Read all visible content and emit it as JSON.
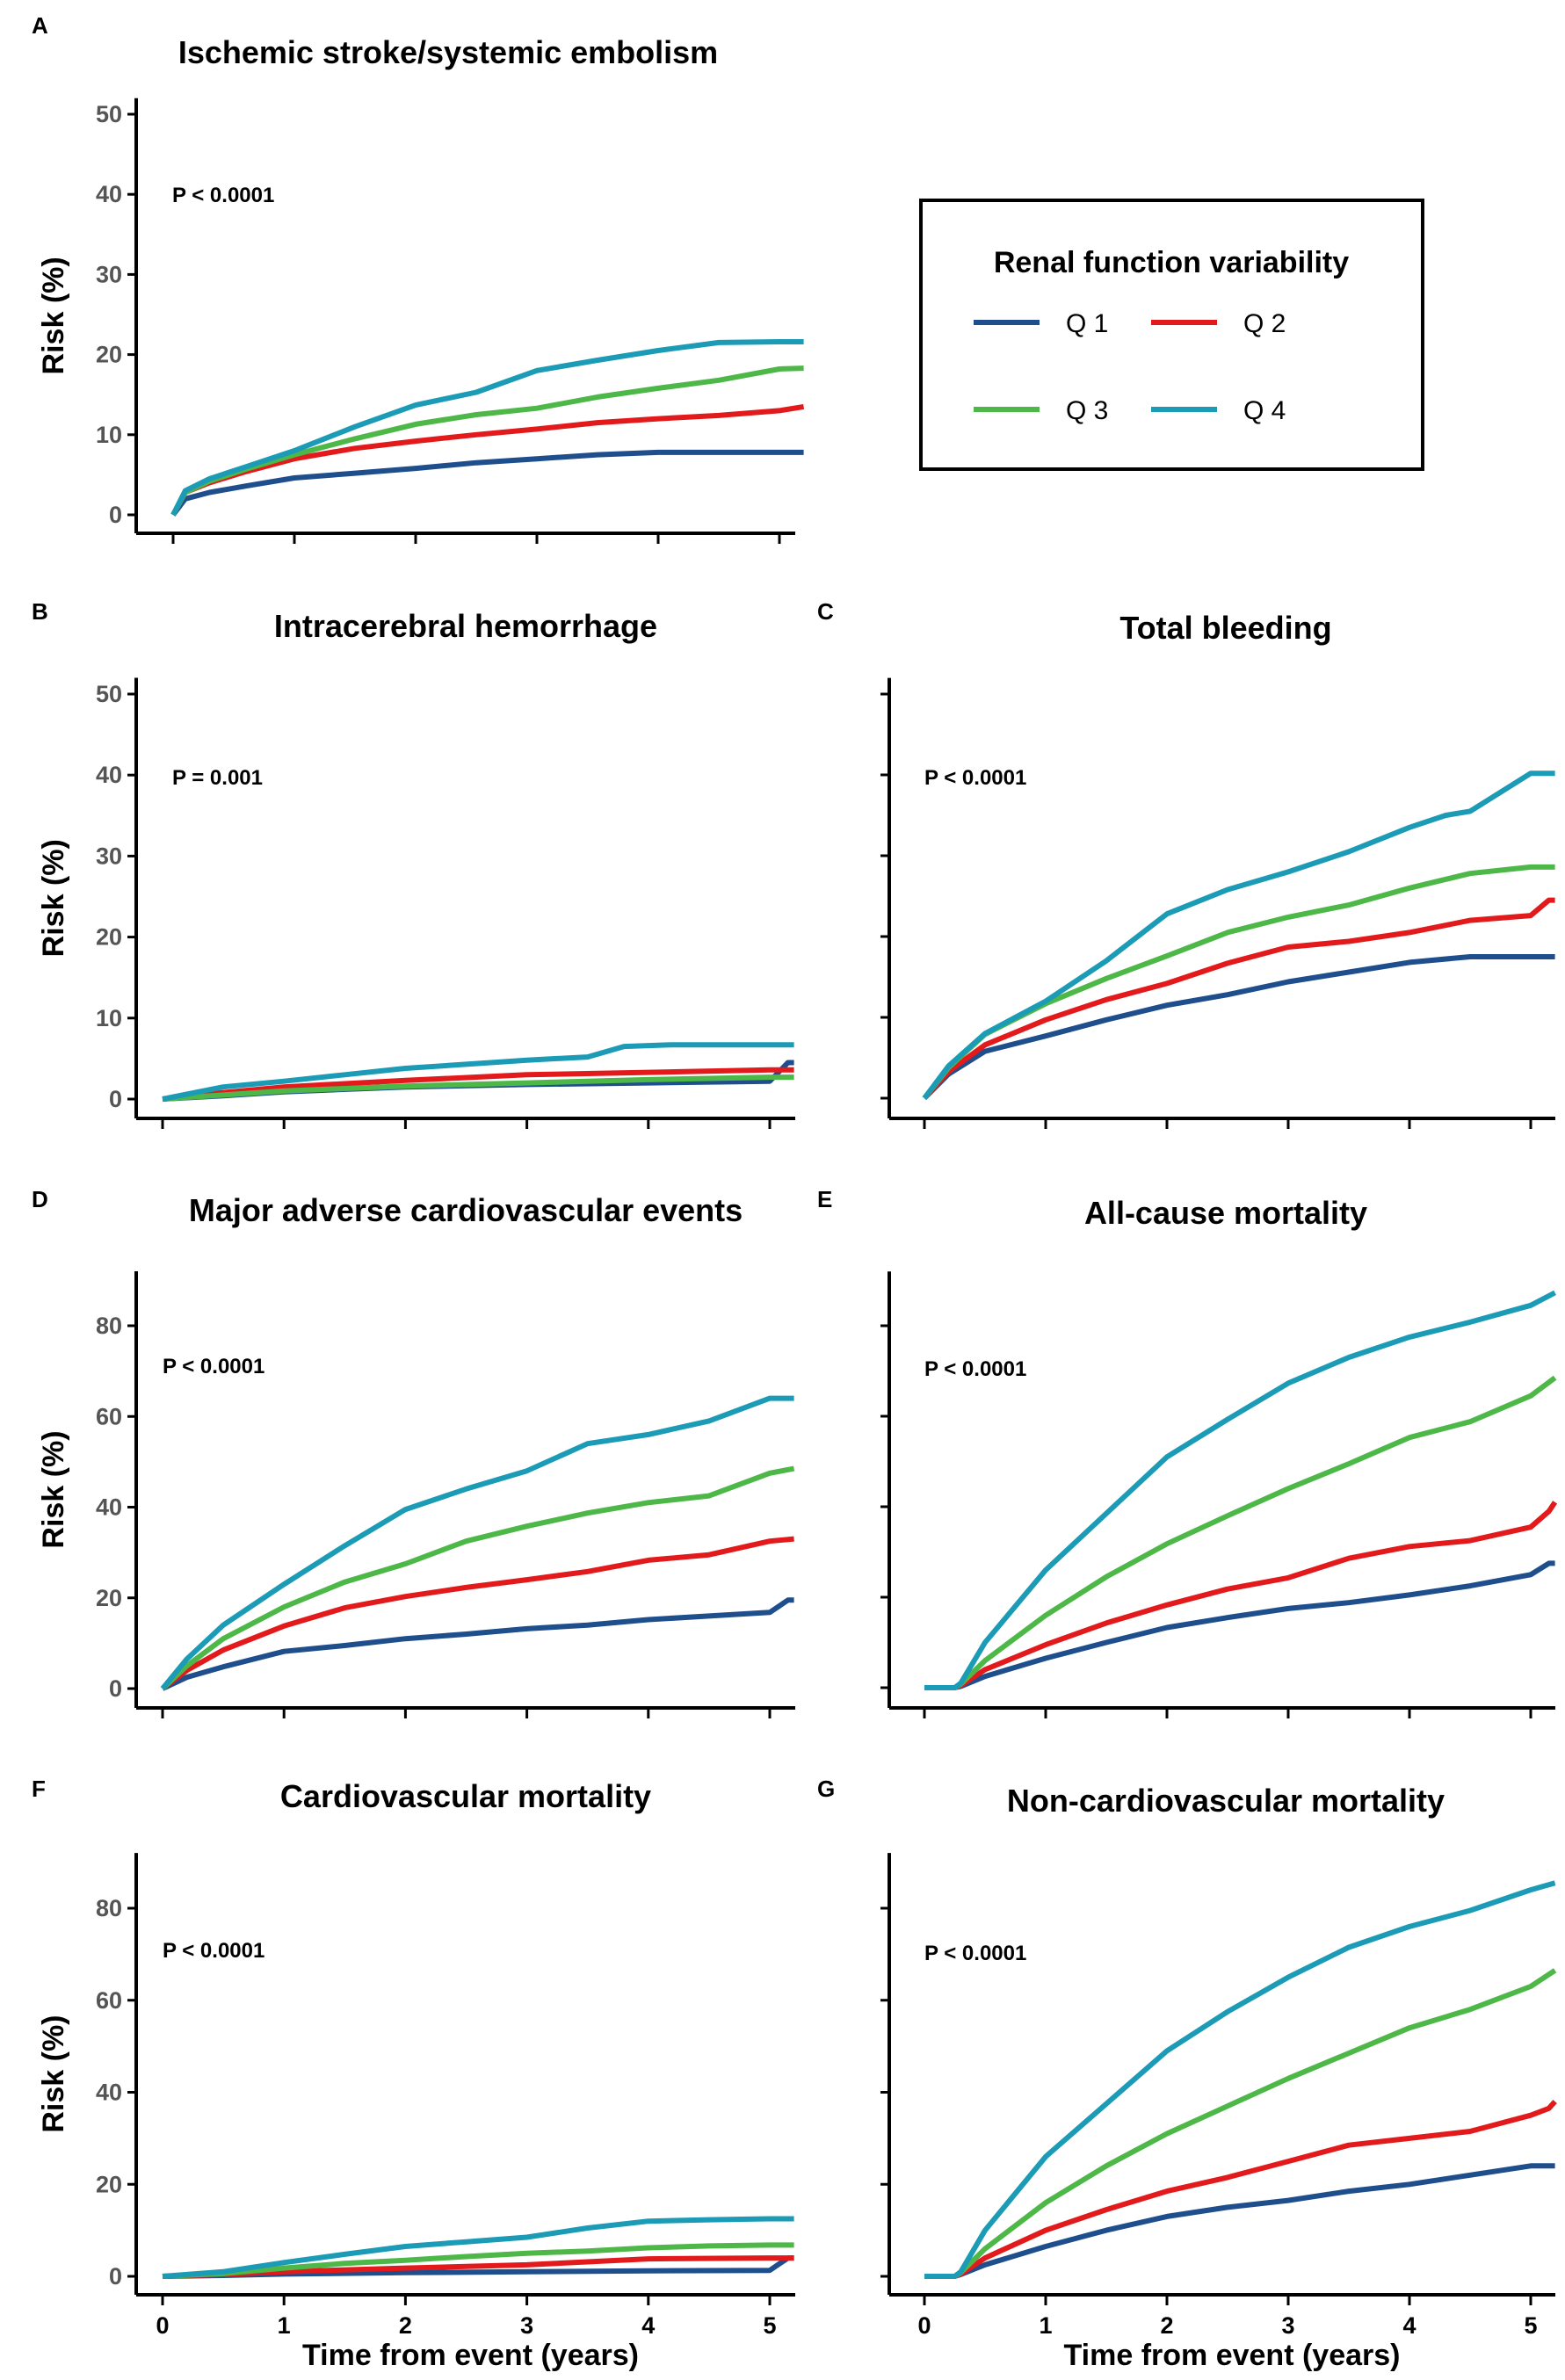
{
  "series_colors": {
    "Q 1": "#1f4e8c",
    "Q 2": "#e31a1c",
    "Q 3": "#4db848",
    "Q 4": "#1b9bb5"
  },
  "legend": {
    "title": "Renal function variability",
    "entries": [
      "Q 1",
      "Q 2",
      "Q 3",
      "Q 4"
    ]
  },
  "chart_data": [
    {
      "id": "A",
      "type": "line",
      "letter": "A",
      "title": "Ischemic stroke/systemic embolism",
      "p_value": "P < 0.0001",
      "ylabel": "Risk (%)",
      "xlabel": "",
      "xlim": [
        0,
        5.2
      ],
      "ylim": [
        0,
        52
      ],
      "yticks": [
        0,
        10,
        20,
        30,
        40,
        50
      ],
      "xticks": [
        0,
        1,
        2,
        3,
        4,
        5
      ],
      "show_xtick_labels": false,
      "series": [
        {
          "name": "Q 1",
          "x": [
            0,
            0.1,
            0.3,
            0.6,
            1.0,
            1.5,
            2.0,
            2.5,
            3.0,
            3.5,
            4.0,
            4.5,
            5.2
          ],
          "y": [
            0,
            2.0,
            2.8,
            3.6,
            4.6,
            5.2,
            5.8,
            6.5,
            7.0,
            7.5,
            7.8,
            7.8,
            7.8
          ]
        },
        {
          "name": "Q 2",
          "x": [
            0,
            0.1,
            0.3,
            0.6,
            1.0,
            1.5,
            2.0,
            2.5,
            3.0,
            3.5,
            4.0,
            4.5,
            5.0,
            5.2
          ],
          "y": [
            0,
            2.8,
            4.0,
            5.4,
            7.0,
            8.3,
            9.2,
            10.0,
            10.7,
            11.5,
            12.0,
            12.4,
            13.0,
            13.5
          ]
        },
        {
          "name": "Q 3",
          "x": [
            0,
            0.1,
            0.3,
            0.6,
            1.0,
            1.5,
            2.0,
            2.5,
            3.0,
            3.5,
            4.0,
            4.5,
            5.0,
            5.2
          ],
          "y": [
            0,
            2.8,
            4.2,
            5.7,
            7.5,
            9.5,
            11.3,
            12.5,
            13.3,
            14.7,
            15.8,
            16.8,
            18.2,
            18.3
          ]
        },
        {
          "name": "Q 4",
          "x": [
            0,
            0.1,
            0.3,
            0.6,
            1.0,
            1.5,
            2.0,
            2.5,
            3.0,
            3.5,
            4.0,
            4.5,
            5.0,
            5.2
          ],
          "y": [
            0,
            3.0,
            4.5,
            6.0,
            8.0,
            11.0,
            13.7,
            15.3,
            18.0,
            19.3,
            20.5,
            21.5,
            21.6,
            21.6
          ]
        }
      ]
    },
    {
      "id": "B",
      "type": "line",
      "letter": "B",
      "title": "Intracerebral hemorrhage",
      "p_value": "P = 0.001",
      "ylabel": "Risk (%)",
      "xlabel": "",
      "xlim": [
        0,
        5.2
      ],
      "ylim": [
        0,
        52
      ],
      "yticks": [
        0,
        10,
        20,
        30,
        40,
        50
      ],
      "xticks": [
        0,
        1,
        2,
        3,
        4,
        5
      ],
      "show_xtick_labels": false,
      "series": [
        {
          "name": "Q 1",
          "x": [
            0,
            0.5,
            1.0,
            2.0,
            3.0,
            4.0,
            5.0,
            5.15,
            5.2
          ],
          "y": [
            0,
            0.4,
            0.9,
            1.5,
            1.8,
            2.0,
            2.2,
            4.5,
            4.5
          ]
        },
        {
          "name": "Q 2",
          "x": [
            0,
            0.5,
            1.0,
            2.0,
            3.0,
            4.0,
            5.0,
            5.2
          ],
          "y": [
            0,
            0.8,
            1.5,
            2.3,
            3.0,
            3.3,
            3.6,
            3.6
          ]
        },
        {
          "name": "Q 3",
          "x": [
            0,
            0.5,
            1.0,
            2.0,
            3.0,
            4.0,
            5.0,
            5.2
          ],
          "y": [
            0,
            0.5,
            1.0,
            1.6,
            2.0,
            2.4,
            2.7,
            2.7
          ]
        },
        {
          "name": "Q 4",
          "x": [
            0,
            0.5,
            1.0,
            1.5,
            2.0,
            2.5,
            3.0,
            3.5,
            3.8,
            4.2,
            5.2
          ],
          "y": [
            0,
            1.5,
            2.2,
            3.0,
            3.8,
            4.3,
            4.8,
            5.2,
            6.5,
            6.7,
            6.7
          ]
        }
      ]
    },
    {
      "id": "C",
      "type": "line",
      "letter": "C",
      "title": "Total bleeding",
      "p_value": "P < 0.0001",
      "ylabel": "",
      "xlabel": "",
      "xlim": [
        0,
        5.2
      ],
      "ylim": [
        0,
        52
      ],
      "yticks": [
        0,
        10,
        20,
        30,
        40,
        50
      ],
      "xticks": [
        0,
        1,
        2,
        3,
        4,
        5
      ],
      "show_xtick_labels": false,
      "show_ytick_labels": false,
      "series": [
        {
          "name": "Q 1",
          "x": [
            0,
            0.2,
            0.5,
            1.0,
            1.5,
            2.0,
            2.5,
            3.0,
            3.5,
            4.0,
            4.5,
            5.0,
            5.2
          ],
          "y": [
            0,
            3.0,
            5.8,
            7.7,
            9.7,
            11.5,
            12.8,
            14.4,
            15.6,
            16.8,
            17.5,
            17.5,
            17.5
          ]
        },
        {
          "name": "Q 2",
          "x": [
            0,
            0.2,
            0.5,
            1.0,
            1.5,
            2.0,
            2.5,
            3.0,
            3.5,
            4.0,
            4.5,
            5.0,
            5.15,
            5.2
          ],
          "y": [
            0,
            3.3,
            6.6,
            9.7,
            12.2,
            14.2,
            16.7,
            18.7,
            19.4,
            20.5,
            22.0,
            22.6,
            24.5,
            24.5
          ]
        },
        {
          "name": "Q 3",
          "x": [
            0,
            0.2,
            0.5,
            1.0,
            1.5,
            2.0,
            2.5,
            3.0,
            3.5,
            4.0,
            4.5,
            5.0,
            5.2
          ],
          "y": [
            0,
            3.8,
            7.9,
            11.7,
            14.8,
            17.6,
            20.5,
            22.4,
            23.9,
            26.0,
            27.8,
            28.6,
            28.6
          ]
        },
        {
          "name": "Q 4",
          "x": [
            0,
            0.2,
            0.5,
            1.0,
            1.5,
            2.0,
            2.5,
            3.0,
            3.5,
            4.0,
            4.3,
            4.5,
            5.0,
            5.2
          ],
          "y": [
            0,
            4.0,
            8.0,
            12.0,
            17.0,
            22.8,
            25.8,
            28.0,
            30.5,
            33.5,
            35.0,
            35.5,
            40.2,
            40.2
          ]
        }
      ]
    },
    {
      "id": "D",
      "type": "line",
      "letter": "D",
      "title": "Major adverse cardiovascular events",
      "p_value": "P < 0.0001",
      "ylabel": "Risk (%)",
      "xlabel": "",
      "xlim": [
        0,
        5.2
      ],
      "ylim": [
        0,
        92
      ],
      "yticks": [
        0,
        20,
        40,
        60,
        80
      ],
      "xticks": [
        0,
        1,
        2,
        3,
        4,
        5
      ],
      "show_xtick_labels": false,
      "series": [
        {
          "name": "Q 1",
          "x": [
            0,
            0.2,
            0.5,
            1.0,
            1.5,
            2.0,
            2.5,
            3.0,
            3.5,
            4.0,
            4.5,
            5.0,
            5.15,
            5.2
          ],
          "y": [
            0,
            2.5,
            4.8,
            8.2,
            9.5,
            11.0,
            12.0,
            13.2,
            14.0,
            15.2,
            16.0,
            16.8,
            19.5,
            19.5
          ]
        },
        {
          "name": "Q 2",
          "x": [
            0,
            0.2,
            0.5,
            1.0,
            1.5,
            2.0,
            2.5,
            3.0,
            3.5,
            4.0,
            4.5,
            5.0,
            5.2
          ],
          "y": [
            0,
            4.0,
            8.5,
            13.8,
            17.8,
            20.3,
            22.3,
            24.0,
            25.8,
            28.3,
            29.5,
            32.5,
            33.0
          ]
        },
        {
          "name": "Q 3",
          "x": [
            0,
            0.2,
            0.5,
            1.0,
            1.5,
            2.0,
            2.5,
            3.0,
            3.5,
            4.0,
            4.5,
            5.0,
            5.2
          ],
          "y": [
            0,
            5.0,
            11.0,
            18.0,
            23.5,
            27.5,
            32.5,
            35.8,
            38.7,
            41.0,
            42.5,
            47.5,
            48.5
          ]
        },
        {
          "name": "Q 4",
          "x": [
            0,
            0.2,
            0.5,
            1.0,
            1.5,
            2.0,
            2.5,
            3.0,
            3.5,
            4.0,
            4.5,
            5.0,
            5.2
          ],
          "y": [
            0,
            6.5,
            14.0,
            23.0,
            31.5,
            39.5,
            44.0,
            48.0,
            54.0,
            56.0,
            59.0,
            64.0,
            64.0
          ]
        }
      ]
    },
    {
      "id": "E",
      "type": "line",
      "letter": "E",
      "title": "All-cause mortality",
      "p_value": "P < 0.0001",
      "ylabel": "",
      "xlabel": "",
      "xlim": [
        0,
        5.2
      ],
      "ylim": [
        0,
        92
      ],
      "yticks": [
        0,
        20,
        40,
        60,
        80
      ],
      "xticks": [
        0,
        1,
        2,
        3,
        4,
        5
      ],
      "show_xtick_labels": false,
      "show_ytick_labels": false,
      "series": [
        {
          "name": "Q 1",
          "x": [
            0,
            0.25,
            0.3,
            0.5,
            1.0,
            1.5,
            2.0,
            2.5,
            3.0,
            3.5,
            4.0,
            4.5,
            5.0,
            5.15,
            5.2
          ],
          "y": [
            0,
            0,
            0.3,
            2.5,
            6.5,
            10.0,
            13.3,
            15.5,
            17.5,
            18.8,
            20.5,
            22.5,
            25.0,
            27.5,
            27.5
          ]
        },
        {
          "name": "Q 2",
          "x": [
            0,
            0.25,
            0.3,
            0.5,
            1.0,
            1.5,
            2.0,
            2.5,
            3.0,
            3.5,
            4.0,
            4.5,
            5.0,
            5.15,
            5.2
          ],
          "y": [
            0,
            0,
            0.5,
            4.0,
            9.5,
            14.3,
            18.3,
            21.8,
            24.3,
            28.6,
            31.2,
            32.5,
            35.5,
            39.0,
            41.0
          ]
        },
        {
          "name": "Q 3",
          "x": [
            0,
            0.25,
            0.3,
            0.5,
            1.0,
            1.5,
            2.0,
            2.5,
            3.0,
            3.5,
            4.0,
            4.5,
            5.0,
            5.2
          ],
          "y": [
            0,
            0,
            0.8,
            6.0,
            16.0,
            24.5,
            31.8,
            38.0,
            44.0,
            49.5,
            55.3,
            58.8,
            64.5,
            68.5
          ]
        },
        {
          "name": "Q 4",
          "x": [
            0,
            0.25,
            0.3,
            0.5,
            1.0,
            1.5,
            2.0,
            2.5,
            3.0,
            3.5,
            4.0,
            4.5,
            5.0,
            5.2
          ],
          "y": [
            0,
            0,
            1.0,
            10.0,
            26.0,
            38.5,
            51.0,
            59.3,
            67.3,
            73.0,
            77.5,
            80.8,
            84.5,
            87.3
          ]
        }
      ]
    },
    {
      "id": "F",
      "type": "line",
      "letter": "F",
      "title": "Cardiovascular mortality",
      "p_value": "P < 0.0001",
      "ylabel": "Risk (%)",
      "xlabel": "Time from event (years)",
      "xlim": [
        0,
        5.2
      ],
      "ylim": [
        0,
        92
      ],
      "yticks": [
        0,
        20,
        40,
        60,
        80
      ],
      "xticks": [
        0,
        1,
        2,
        3,
        4,
        5
      ],
      "show_xtick_labels": true,
      "series": [
        {
          "name": "Q 1",
          "x": [
            0,
            0.5,
            1.0,
            2.0,
            3.0,
            4.0,
            5.0,
            5.15,
            5.2
          ],
          "y": [
            0,
            0.2,
            0.5,
            0.8,
            1.0,
            1.2,
            1.3,
            4.0,
            4.0
          ]
        },
        {
          "name": "Q 2",
          "x": [
            0,
            0.5,
            1.0,
            2.0,
            3.0,
            4.0,
            5.0,
            5.2
          ],
          "y": [
            0,
            0.4,
            1.0,
            1.8,
            2.5,
            3.8,
            4.0,
            4.0
          ]
        },
        {
          "name": "Q 3",
          "x": [
            0,
            0.5,
            1.0,
            1.5,
            2.0,
            2.5,
            3.0,
            3.5,
            4.0,
            4.5,
            5.0,
            5.2
          ],
          "y": [
            0,
            0.6,
            1.8,
            2.8,
            3.5,
            4.3,
            5.0,
            5.5,
            6.2,
            6.6,
            6.8,
            6.8
          ]
        },
        {
          "name": "Q 4",
          "x": [
            0,
            0.5,
            1.0,
            1.5,
            2.0,
            2.5,
            3.0,
            3.5,
            4.0,
            4.5,
            5.0,
            5.2
          ],
          "y": [
            0,
            1.0,
            3.0,
            4.8,
            6.5,
            7.5,
            8.5,
            10.5,
            12.0,
            12.3,
            12.5,
            12.5
          ]
        }
      ]
    },
    {
      "id": "G",
      "type": "line",
      "letter": "G",
      "title": "Non-cardiovascular mortality",
      "p_value": "P < 0.0001",
      "ylabel": "",
      "xlabel": "Time from event (years)",
      "xlim": [
        0,
        5.2
      ],
      "ylim": [
        0,
        92
      ],
      "yticks": [
        0,
        20,
        40,
        60,
        80
      ],
      "xticks": [
        0,
        1,
        2,
        3,
        4,
        5
      ],
      "show_xtick_labels": true,
      "show_ytick_labels": false,
      "series": [
        {
          "name": "Q 1",
          "x": [
            0,
            0.25,
            0.3,
            0.5,
            1.0,
            1.5,
            2.0,
            2.5,
            3.0,
            3.5,
            4.0,
            4.5,
            5.0,
            5.2
          ],
          "y": [
            0,
            0,
            0.4,
            2.5,
            6.5,
            10.0,
            13.0,
            15.0,
            16.5,
            18.5,
            20.0,
            22.0,
            24.0,
            24.0
          ]
        },
        {
          "name": "Q 2",
          "x": [
            0,
            0.25,
            0.3,
            0.5,
            1.0,
            1.5,
            2.0,
            2.5,
            3.0,
            3.5,
            4.0,
            4.5,
            5.0,
            5.15,
            5.2
          ],
          "y": [
            0,
            0,
            0.5,
            4.0,
            10.0,
            14.5,
            18.5,
            21.5,
            25.0,
            28.5,
            30.0,
            31.5,
            35.0,
            36.5,
            38.0
          ]
        },
        {
          "name": "Q 3",
          "x": [
            0,
            0.25,
            0.3,
            0.5,
            1.0,
            1.5,
            2.0,
            2.5,
            3.0,
            3.5,
            4.0,
            4.5,
            5.0,
            5.2
          ],
          "y": [
            0,
            0,
            0.8,
            6.0,
            16.0,
            24.0,
            31.0,
            37.0,
            43.0,
            48.5,
            54.0,
            58.0,
            63.0,
            66.5
          ]
        },
        {
          "name": "Q 4",
          "x": [
            0,
            0.25,
            0.3,
            0.5,
            1.0,
            1.5,
            2.0,
            2.5,
            3.0,
            3.5,
            4.0,
            4.5,
            5.0,
            5.2
          ],
          "y": [
            0,
            0,
            1.0,
            10.0,
            26.0,
            37.5,
            49.0,
            57.5,
            65.0,
            71.5,
            76.0,
            79.5,
            84.0,
            85.5
          ]
        }
      ]
    }
  ]
}
